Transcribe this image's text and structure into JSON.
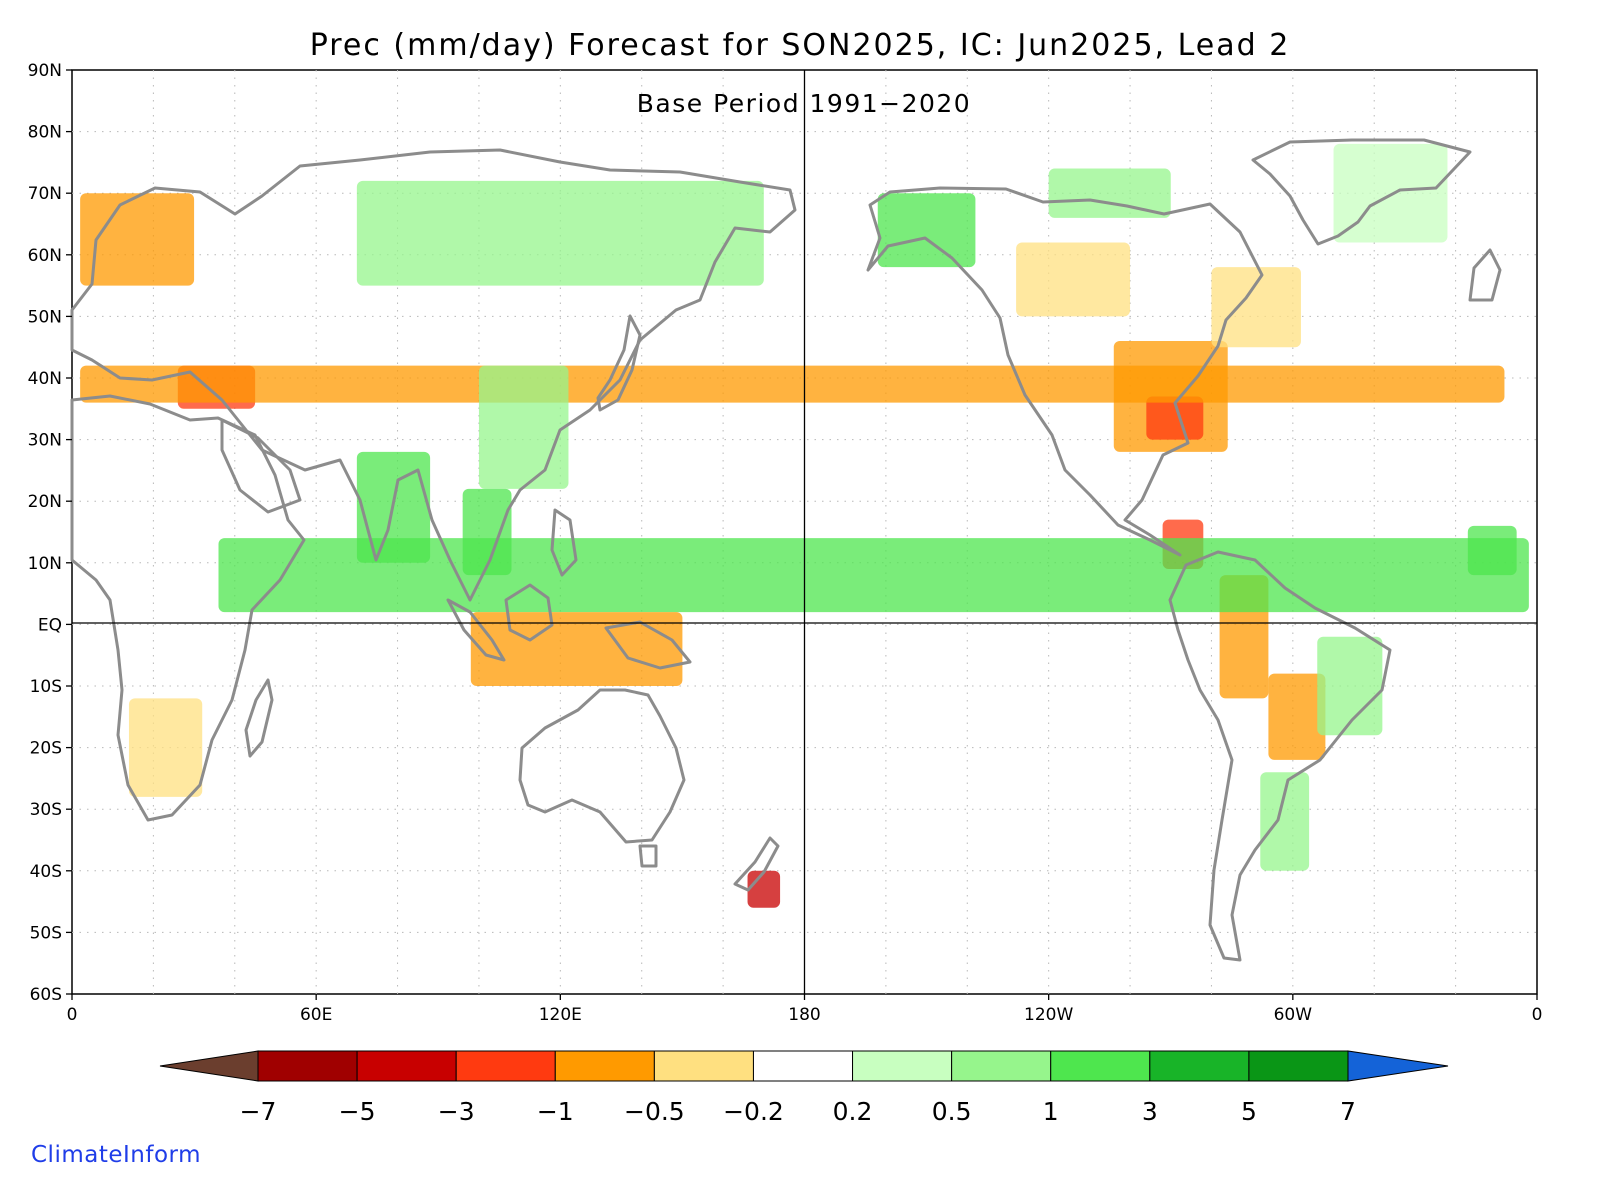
{
  "title": "Prec (mm/day) Forecast for SON2025, IC: Jun2025, Lead 2",
  "subtitle": "Base Period 1991−2020",
  "brand": "ClimateInform",
  "axes": {
    "lat_ticks": [
      "90N",
      "80N",
      "70N",
      "60N",
      "50N",
      "40N",
      "30N",
      "20N",
      "10N",
      "EQ",
      "10S",
      "20S",
      "30S",
      "40S",
      "50S",
      "60S"
    ],
    "lon_ticks": [
      "0",
      "60E",
      "120E",
      "180",
      "120W",
      "60W",
      "0"
    ]
  },
  "colorbar": {
    "labels": [
      "−7",
      "−5",
      "−3",
      "−1",
      "−0.5",
      "−0.2",
      "0.2",
      "0.5",
      "1",
      "3",
      "5",
      "7"
    ],
    "low_extend_color": "#6b3e2e",
    "high_extend_color": "#1463d8",
    "bins": [
      {
        "range": "-7 to -5",
        "color": "#a00000"
      },
      {
        "range": "-5 to -3",
        "color": "#c80000"
      },
      {
        "range": "-3 to -1",
        "color": "#ff3a10"
      },
      {
        "range": "-1 to -0.5",
        "color": "#ff9a00"
      },
      {
        "range": "-0.5 to -0.2",
        "color": "#ffe080"
      },
      {
        "range": "-0.2 to 0.2",
        "color": "#ffffff"
      },
      {
        "range": "0.2 to 0.5",
        "color": "#c8ffc0"
      },
      {
        "range": "0.5 to 1",
        "color": "#96f58c"
      },
      {
        "range": "1 to 3",
        "color": "#4ee64e"
      },
      {
        "range": "3 to 5",
        "color": "#18b428"
      },
      {
        "range": "5 to 7",
        "color": "#0a9616"
      }
    ]
  },
  "map_data": {
    "projection": "equirectangular, lon 0 to 360 (0E eastward to 0)",
    "lat_range": [
      -60,
      90
    ],
    "lon_range": [
      0,
      360
    ],
    "gridlines": "dotted",
    "reference_lines": [
      "equator",
      "180 meridian"
    ],
    "anomaly_regions": [
      {
        "name": "central and southeastern United States",
        "lon": [
          -104,
          -76
        ],
        "lat": [
          28,
          46
        ],
        "color": "#ff9a00"
      },
      {
        "name": "lower Mississippi valley core",
        "lon": [
          -96,
          -82
        ],
        "lat": [
          30,
          37
        ],
        "color": "#ff3a10"
      },
      {
        "name": "western Canada",
        "lon": [
          -128,
          -100
        ],
        "lat": [
          50,
          62
        ],
        "color": "#ffe080"
      },
      {
        "name": "eastern Canada",
        "lon": [
          -80,
          -58
        ],
        "lat": [
          45,
          58
        ],
        "color": "#ffe080"
      },
      {
        "name": "Alaska and Yukon",
        "lon": [
          -162,
          -138
        ],
        "lat": [
          58,
          70
        ],
        "color": "#4ee64e"
      },
      {
        "name": "Canadian Arctic",
        "lon": [
          -120,
          -90
        ],
        "lat": [
          66,
          74
        ],
        "color": "#96f58c"
      },
      {
        "name": "Greenland",
        "lon": [
          -50,
          -22
        ],
        "lat": [
          62,
          78
        ],
        "color": "#c8ffc0"
      },
      {
        "name": "Central America",
        "lon": [
          -92,
          -82
        ],
        "lat": [
          9,
          17
        ],
        "color": "#ff3a10"
      },
      {
        "name": "northwestern South America",
        "lon": [
          -78,
          -66
        ],
        "lat": [
          -12,
          8
        ],
        "color": "#ff9a00"
      },
      {
        "name": "central South America",
        "lon": [
          -66,
          -52
        ],
        "lat": [
          -22,
          -8
        ],
        "color": "#ff9a00"
      },
      {
        "name": "eastern Brazil",
        "lon": [
          -54,
          -38
        ],
        "lat": [
          -18,
          -2
        ],
        "color": "#96f58c"
      },
      {
        "name": "southern South America",
        "lon": [
          -68,
          -56
        ],
        "lat": [
          -40,
          -24
        ],
        "color": "#96f58c"
      },
      {
        "name": "Siberia",
        "lon": [
          70,
          170
        ],
        "lat": [
          55,
          72
        ],
        "color": "#96f58c"
      },
      {
        "name": "northern Europe",
        "lon": [
          2,
          30
        ],
        "lat": [
          55,
          70
        ],
        "color": "#ff9a00"
      },
      {
        "name": "Turkey and eastern Mediterranean",
        "lon": [
          26,
          45
        ],
        "lat": [
          35,
          42
        ],
        "color": "#ff3a10"
      },
      {
        "name": "Iberia",
        "lon": [
          -8,
          2
        ],
        "lat": [
          36,
          42
        ],
        "color": "#ff9a00"
      },
      {
        "name": "India",
        "lon": [
          70,
          88
        ],
        "lat": [
          10,
          28
        ],
        "color": "#4ee64e"
      },
      {
        "name": "China",
        "lon": [
          100,
          122
        ],
        "lat": [
          22,
          42
        ],
        "color": "#96f58c"
      },
      {
        "name": "Indochina",
        "lon": [
          96,
          108
        ],
        "lat": [
          8,
          22
        ],
        "color": "#4ee64e"
      },
      {
        "name": "Sahel and central Africa",
        "lon": [
          -2,
          36
        ],
        "lat": [
          2,
          14
        ],
        "color": "#4ee64e"
      },
      {
        "name": "southern Africa",
        "lon": [
          14,
          32
        ],
        "lat": [
          -28,
          -12
        ],
        "color": "#ffe080"
      },
      {
        "name": "Maritime Continent",
        "lon": [
          98,
          150
        ],
        "lat": [
          -10,
          2
        ],
        "color": "#ff9a00"
      },
      {
        "name": "New Zealand South Island",
        "lon": [
          166,
          174
        ],
        "lat": [
          -46,
          -40
        ],
        "color": "#c80000"
      },
      {
        "name": "western Sahel",
        "lon": [
          -17,
          -5
        ],
        "lat": [
          8,
          16
        ],
        "color": "#4ee64e"
      }
    ]
  }
}
